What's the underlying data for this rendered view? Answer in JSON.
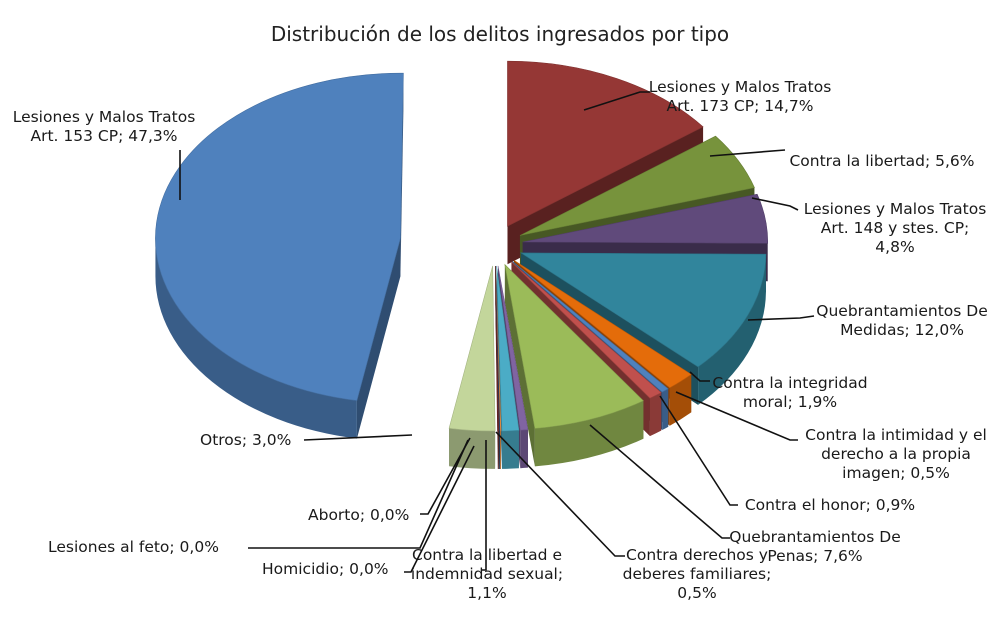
{
  "chart_data": {
    "type": "pie",
    "title": "Distribución de los delitos ingresados por tipo",
    "slices": [
      {
        "label": "Lesiones y Malos Tratos Art. 173 CP",
        "text": "Lesiones y Malos Tratos Art. 173 CP; 14,7%",
        "value": 14.7,
        "color": "#953735"
      },
      {
        "label": "Contra la libertad",
        "text": "Contra la libertad; 5,6%",
        "value": 5.6,
        "color": "#77933C"
      },
      {
        "label": "Lesiones y Malos Tratos Art. 148 y stes. CP",
        "text": "Lesiones y Malos Tratos Art. 148 y stes. CP; 4,8%",
        "value": 4.8,
        "color": "#604A7B"
      },
      {
        "label": "Quebrantamientos De Medidas",
        "text": "Quebrantamientos De Medidas; 12,0%",
        "value": 12.0,
        "color": "#31859C"
      },
      {
        "label": "Contra la integridad moral",
        "text": "Contra la integridad moral; 1,9%",
        "value": 1.9,
        "color": "#E46C0A"
      },
      {
        "label": "Contra la intimidad y el derecho a la propia imagen",
        "text": "Contra la intimidad y el derecho a la propia imagen; 0,5%",
        "value": 0.5,
        "color": "#4F81BD"
      },
      {
        "label": "Contra el honor",
        "text": "Contra el honor; 0,9%",
        "value": 0.9,
        "color": "#C0504D"
      },
      {
        "label": "Quebrantamientos De Penas",
        "text": "Quebrantamientos De Penas; 7,6%",
        "value": 7.6,
        "color": "#9BBB59"
      },
      {
        "label": "Contra derechos y deberes familiares",
        "text": "Contra derechos y deberes familiares; 0,5%",
        "value": 0.5,
        "color": "#8064A2"
      },
      {
        "label": "Contra la libertad e indemnidad sexual",
        "text": "Contra la libertad e indemnidad sexual; 1,1%",
        "value": 1.1,
        "color": "#4BACC6"
      },
      {
        "label": "Homicidio",
        "text": "Homicidio; 0,0%",
        "value": 0.0,
        "color": "#F79646"
      },
      {
        "label": "Lesiones al feto",
        "text": "Lesiones al feto; 0,0%",
        "value": 0.0,
        "color": "#2C4D75"
      },
      {
        "label": "Aborto",
        "text": "Aborto; 0,0%",
        "value": 0.0,
        "color": "#772C2A"
      },
      {
        "label": "Otros",
        "text": "Otros; 3,0%",
        "value": 3.0,
        "color": "#C3D69B"
      },
      {
        "label": "Lesiones y Malos Tratos Art. 153 CP",
        "text": "Lesiones y Malos Tratos Art. 153 CP; 47,3%",
        "value": 47.3,
        "color": "#4F81BD"
      }
    ]
  }
}
